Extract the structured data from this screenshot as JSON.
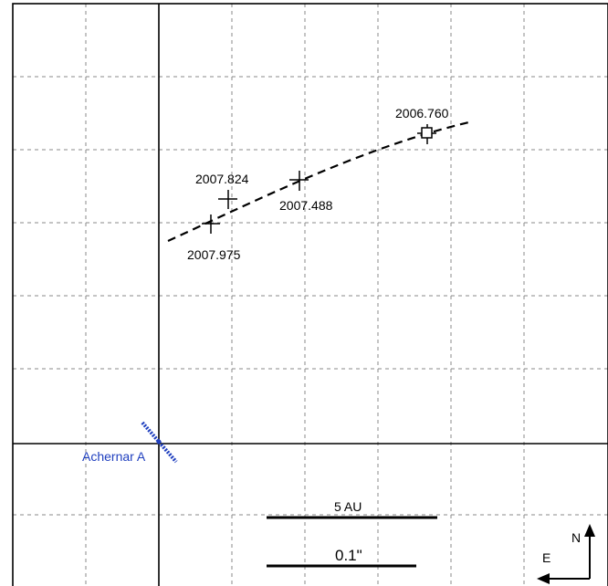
{
  "chart_data": {
    "type": "scatter",
    "title": "",
    "xlabel": "",
    "ylabel": "",
    "grid": true,
    "primary": {
      "name": "Achernar A",
      "color": "#1f3fbf"
    },
    "epochs": [
      {
        "label": "2007.975",
        "marker": "cross"
      },
      {
        "label": "2007.824",
        "marker": "cross"
      },
      {
        "label": "2007.488",
        "marker": "cross"
      },
      {
        "label": "2006.760",
        "marker": "square"
      }
    ],
    "scale_bars": [
      {
        "label": "5 AU"
      },
      {
        "label": "0.1\""
      }
    ],
    "compass": {
      "north_label": "N",
      "east_label": "E"
    }
  }
}
